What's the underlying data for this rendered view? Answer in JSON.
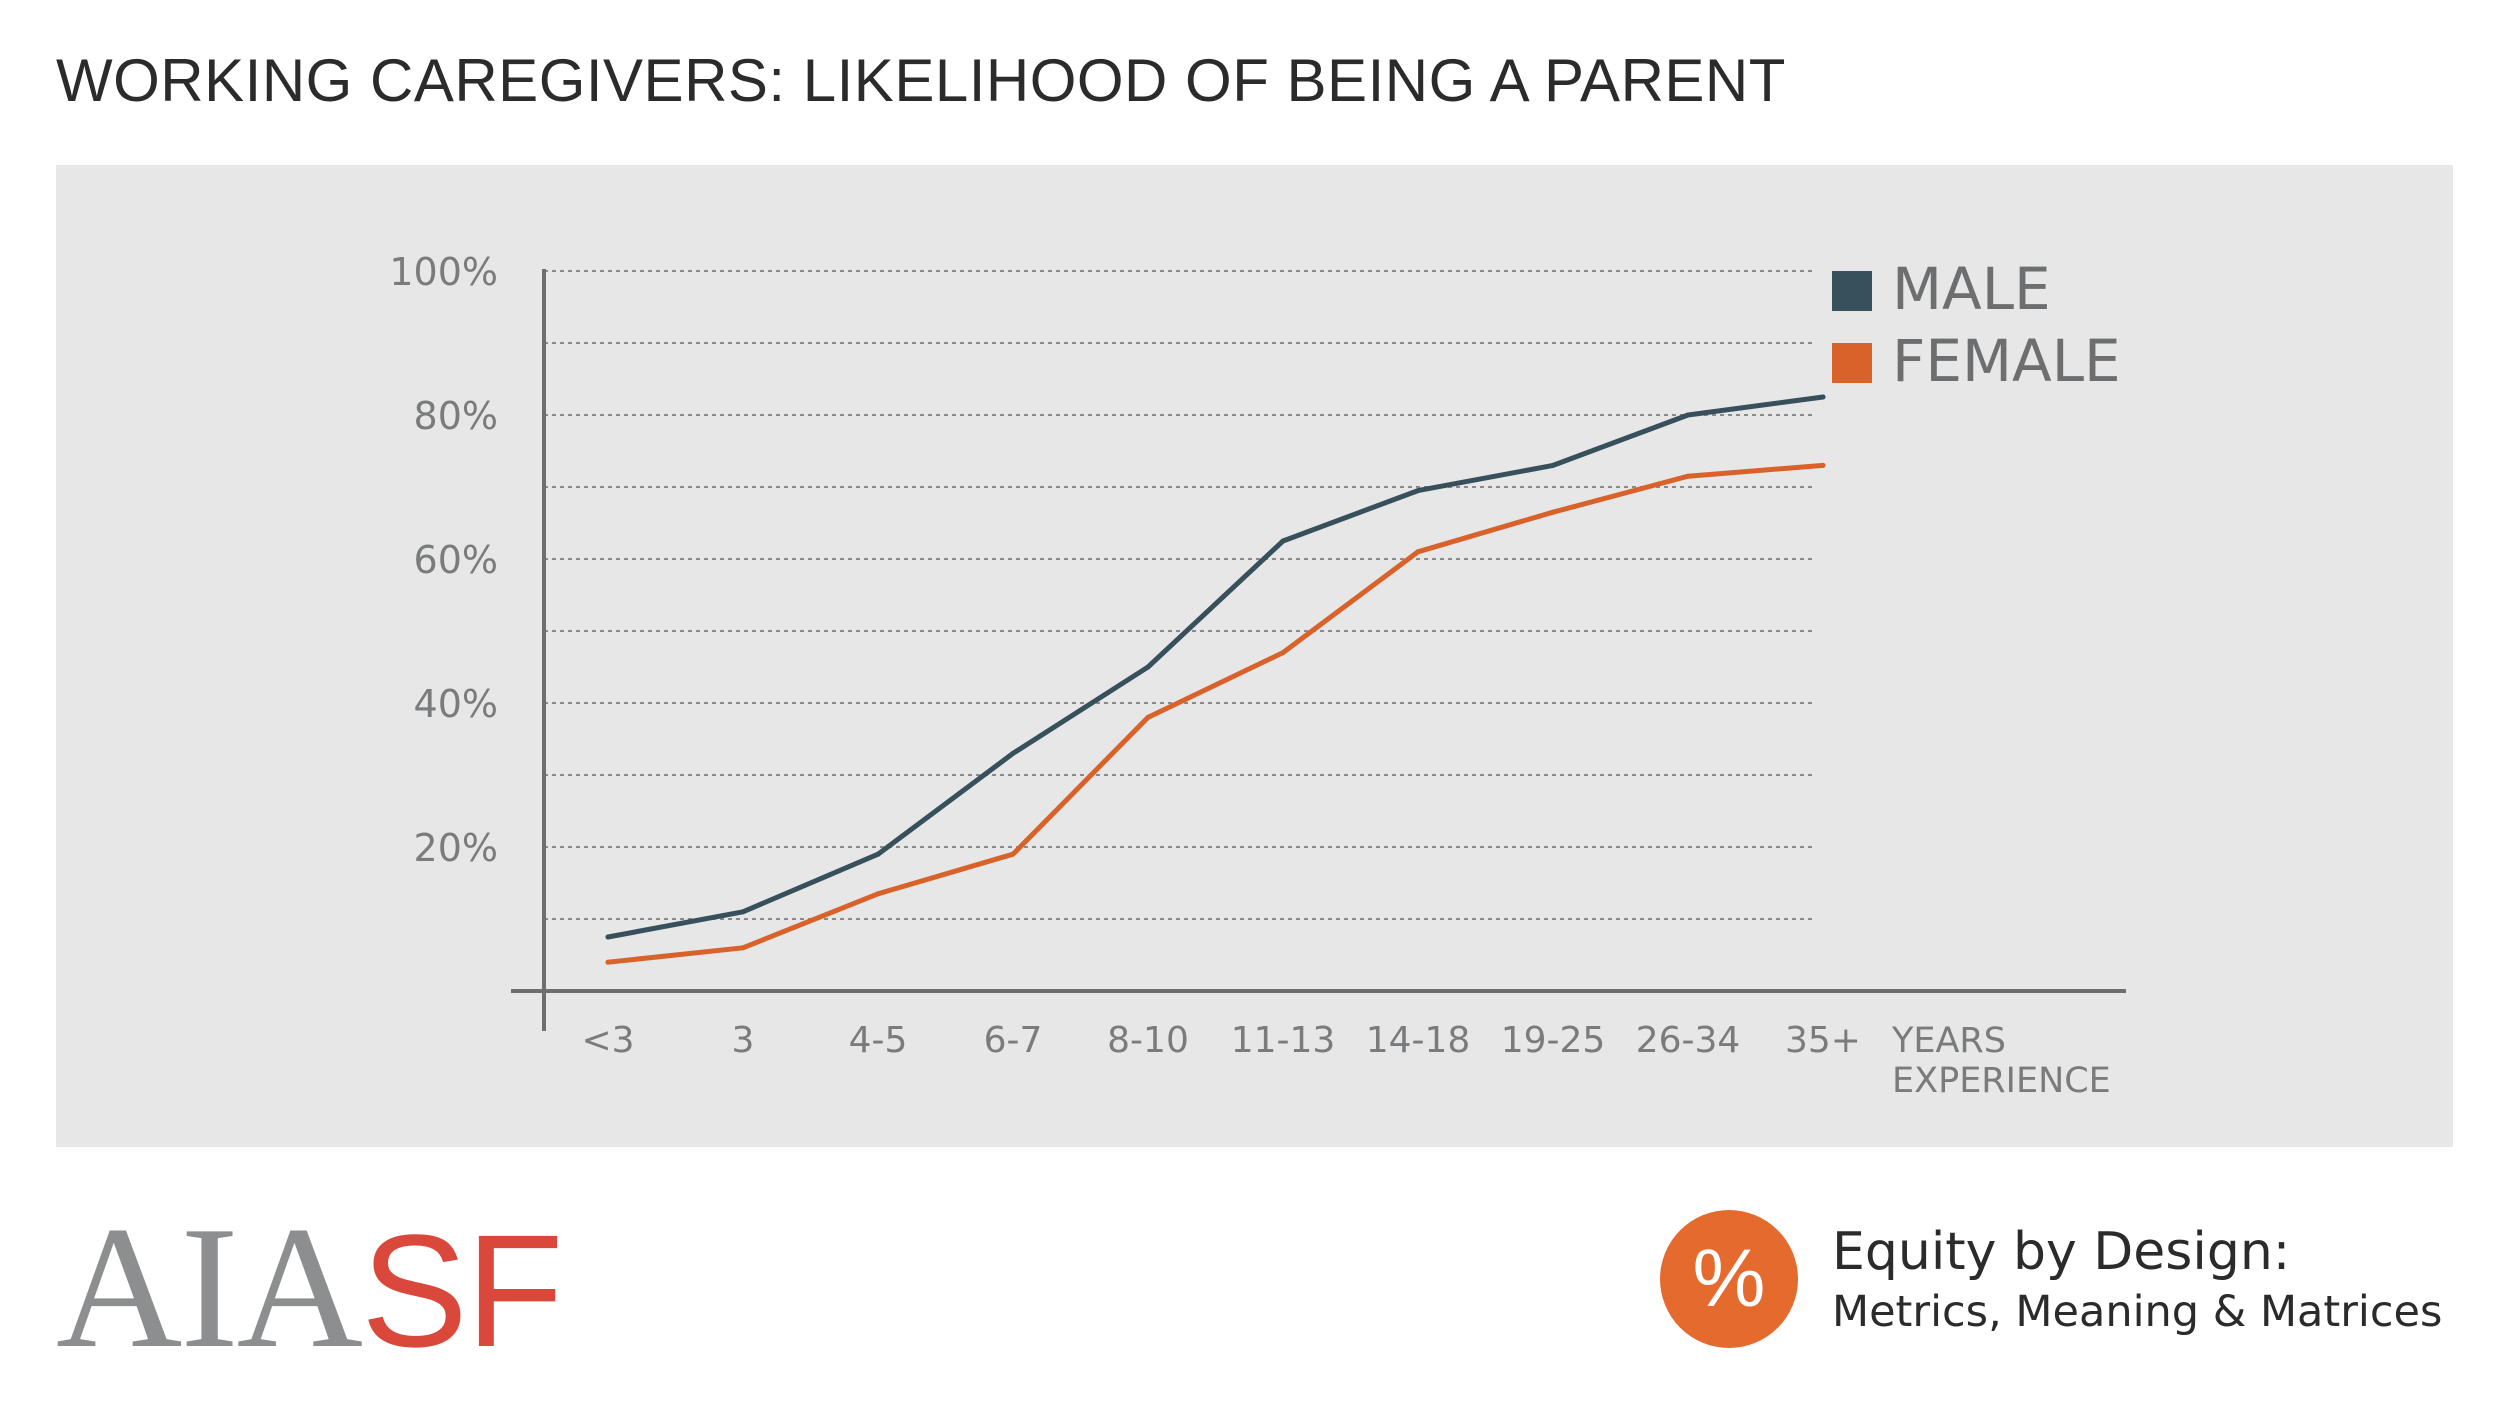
{
  "title": "WORKING CAREGIVERS: LIKELIHOOD OF BEING A PARENT",
  "colors": {
    "male": "#37505c",
    "female": "#d9622b",
    "panel_background": "#e6e7e6",
    "grid": "#8a8a8a",
    "axis": "#6d6e70",
    "tick_text": "#7a7b7d",
    "logo_gray": "#8c8e90",
    "logo_red": "#d9483a",
    "badge": "#e56a2e"
  },
  "chart_data": {
    "type": "line",
    "categories": [
      "<3",
      "3",
      "4-5",
      "6-7",
      "8-10",
      "11-13",
      "14-18",
      "19-25",
      "26-34",
      "35+"
    ],
    "series": [
      {
        "name": "MALE",
        "color": "#37505c",
        "values": [
          7.5,
          11,
          19,
          33,
          45,
          62.5,
          69.5,
          73,
          80,
          82.5
        ]
      },
      {
        "name": "FEMALE",
        "color": "#d9622b",
        "values": [
          4,
          6,
          13.5,
          19,
          38,
          47,
          61,
          66.5,
          71.5,
          73
        ]
      }
    ],
    "y_ticks": [
      "20%",
      "40%",
      "60%",
      "80%",
      "100%"
    ],
    "ylim": [
      0,
      100
    ],
    "gridlines_every": 10,
    "grid": true,
    "xlabel_lines": [
      "YEARS",
      "EXPERIENCE"
    ],
    "legend": {
      "placement": "top-right",
      "entries": [
        "MALE",
        "FEMALE"
      ]
    }
  },
  "footer": {
    "logo_gray_text": "AIA",
    "logo_red_text": "SF",
    "badge_symbol": "%",
    "line1": "Equity by Design:",
    "line2": "Metrics, Meaning & Matrices"
  }
}
